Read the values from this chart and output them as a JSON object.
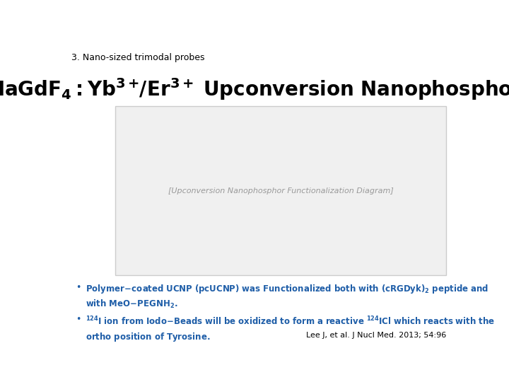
{
  "bg_color": "#ffffff",
  "slide_label": "3. Nano-sized trimodal probes",
  "slide_label_color": "#000000",
  "slide_label_fontsize": 9,
  "title_color": "#000000",
  "image_border_color": "#cccccc",
  "bullet_color": "#1f5ea8",
  "citation": "Lee J, et al. J Nucl Med. 2013; 54:96",
  "citation_color": "#000000",
  "citation_fontsize": 8,
  "bullet_fontsize": 8.5,
  "image_placeholder_color": "#f0f0f0"
}
